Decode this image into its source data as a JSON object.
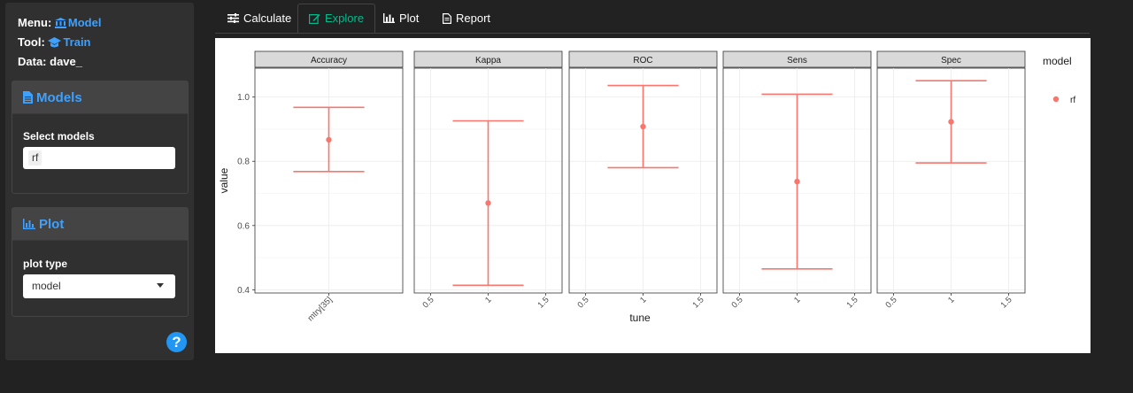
{
  "meta": {
    "menu_label": "Menu:",
    "menu_value": "Model",
    "tool_label": "Tool:",
    "tool_value": "Train",
    "data_label": "Data:",
    "data_value": "dave_"
  },
  "models_panel": {
    "title": "Models",
    "select_label": "Select models",
    "selected": "rf"
  },
  "plot_panel": {
    "title": "Plot",
    "type_label": "plot type",
    "type_value": "model"
  },
  "help": {
    "label": "?"
  },
  "tabs": [
    {
      "label": "Calculate",
      "icon": "sliders-icon",
      "active": false
    },
    {
      "label": "Explore",
      "icon": "edit-icon",
      "active": true
    },
    {
      "label": "Plot",
      "icon": "bar-chart-icon",
      "active": false
    },
    {
      "label": "Report",
      "icon": "file-icon",
      "active": false
    }
  ],
  "colors": {
    "accent": "#3ea1ff",
    "active_tab": "#00bc8c",
    "series": "#f8766d"
  },
  "chart_data": {
    "type": "scatter",
    "xlabel": "tune",
    "ylabel": "value",
    "ylim": [
      0.39,
      1.09
    ],
    "yticks": [
      0.4,
      0.6,
      0.8,
      1.0
    ],
    "ytick_labels": [
      "0.4",
      "0.6",
      "0.8",
      "1.0"
    ],
    "grid": true,
    "legend": {
      "title": "model",
      "position": "right",
      "entries": [
        "rf"
      ]
    },
    "facets": [
      {
        "name": "Accuracy",
        "x_categories": [
          "mtry[35]"
        ],
        "point": 0.867,
        "lower": 0.768,
        "upper": 0.968
      },
      {
        "name": "Kappa",
        "x_ticks": [
          "0.5",
          "1",
          "1.5"
        ],
        "point": 0.67,
        "lower": 0.414,
        "upper": 0.926
      },
      {
        "name": "ROC",
        "x_ticks": [
          "0.5",
          "1",
          "1.5"
        ],
        "point": 0.908,
        "lower": 0.78,
        "upper": 1.036
      },
      {
        "name": "Sens",
        "x_ticks": [
          "0.5",
          "1",
          "1.5"
        ],
        "point": 0.737,
        "lower": 0.465,
        "upper": 1.009
      },
      {
        "name": "Spec",
        "x_ticks": [
          "0.5",
          "1",
          "1.5"
        ],
        "point": 0.923,
        "lower": 0.795,
        "upper": 1.051
      }
    ],
    "series": [
      {
        "name": "rf"
      }
    ]
  }
}
